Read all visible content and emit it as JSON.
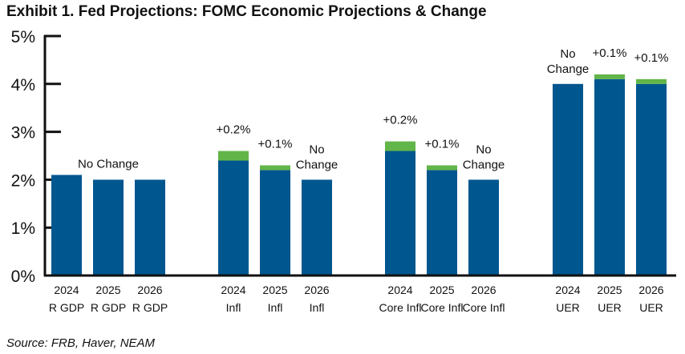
{
  "title": "Exhibit 1. Fed Projections: FOMC Economic Projections & Change",
  "source": "Source: FRB, Haver, NEAM",
  "colors": {
    "base": "#00568f",
    "change": "#62b548",
    "axis": "#111111"
  },
  "chart_data": {
    "type": "bar",
    "stacked": true,
    "title": "Exhibit 1. Fed Projections: FOMC Economic Projections & Change",
    "ylabel": "",
    "xlabel": "",
    "ylim": [
      0,
      5
    ],
    "yticks": [
      "0%",
      "1%",
      "2%",
      "3%",
      "4%",
      "5%"
    ],
    "groups": [
      {
        "name": "R GDP",
        "bars": [
          {
            "year": "2024",
            "label": "R GDP",
            "base": 2.1,
            "change": 0.0
          },
          {
            "year": "2025",
            "label": "R GDP",
            "base": 2.0,
            "change": 0.0
          },
          {
            "year": "2026",
            "label": "R GDP",
            "base": 2.0,
            "change": 0.0
          }
        ],
        "annotations": [
          {
            "bar": 1,
            "lines": [
              "No Change"
            ]
          }
        ]
      },
      {
        "name": "Infl",
        "bars": [
          {
            "year": "2024",
            "label": "Infl",
            "base": 2.4,
            "change": 0.2
          },
          {
            "year": "2025",
            "label": "Infl",
            "base": 2.2,
            "change": 0.1
          },
          {
            "year": "2026",
            "label": "Infl",
            "base": 2.0,
            "change": 0.0
          }
        ],
        "annotations": [
          {
            "bar": 0,
            "lines": [
              "+0.2%"
            ]
          },
          {
            "bar": 1,
            "lines": [
              "+0.1%"
            ]
          },
          {
            "bar": 2,
            "lines": [
              "No",
              "Change"
            ]
          }
        ]
      },
      {
        "name": "Core Infl",
        "bars": [
          {
            "year": "2024",
            "label": "Core Infl",
            "base": 2.6,
            "change": 0.2
          },
          {
            "year": "2025",
            "label": "Core Infl",
            "base": 2.2,
            "change": 0.1
          },
          {
            "year": "2026",
            "label": "Core Infl",
            "base": 2.0,
            "change": 0.0
          }
        ],
        "annotations": [
          {
            "bar": 0,
            "lines": [
              "+0.2%"
            ]
          },
          {
            "bar": 1,
            "lines": [
              "+0.1%"
            ]
          },
          {
            "bar": 2,
            "lines": [
              "No",
              "Change"
            ]
          }
        ]
      },
      {
        "name": "UER",
        "bars": [
          {
            "year": "2024",
            "label": "UER",
            "base": 4.0,
            "change": 0.0
          },
          {
            "year": "2025",
            "label": "UER",
            "base": 4.1,
            "change": 0.1
          },
          {
            "year": "2026",
            "label": "UER",
            "base": 4.0,
            "change": 0.1
          }
        ],
        "annotations": [
          {
            "bar": 0,
            "lines": [
              "No",
              "Change"
            ]
          },
          {
            "bar": 1,
            "lines": [
              "+0.1%"
            ]
          },
          {
            "bar": 2,
            "lines": [
              "+0.1%"
            ]
          }
        ]
      }
    ]
  }
}
